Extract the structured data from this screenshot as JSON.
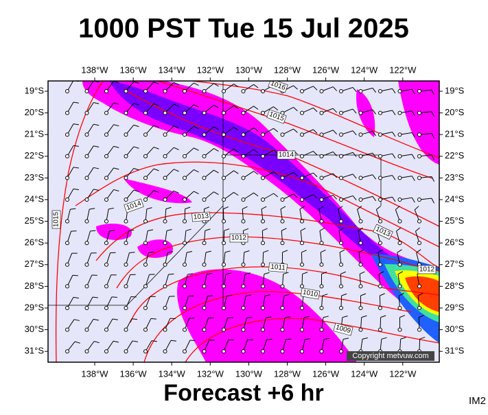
{
  "header": {
    "title": "1000 PST Tue 15 Jul 2025"
  },
  "footer": {
    "caption": "Forecast +6 hr",
    "code": "IM2"
  },
  "map": {
    "copyright": "Copyright metvuw.com",
    "lon_labels": [
      "138°W",
      "136°W",
      "134°W",
      "132°W",
      "130°W",
      "128°W",
      "126°W",
      "124°W",
      "122°W"
    ],
    "lat_labels": [
      "19°S",
      "20°S",
      "21°S",
      "22°S",
      "23°S",
      "24°S",
      "25°S",
      "26°S",
      "27°S",
      "28°S",
      "29°S",
      "30°S",
      "31°S"
    ],
    "isobar_labels": [
      "1016",
      "1015",
      "1014",
      "1014",
      "1013",
      "1012",
      "1011",
      "1010",
      "1009",
      "1013",
      "1012",
      "1015"
    ]
  }
}
